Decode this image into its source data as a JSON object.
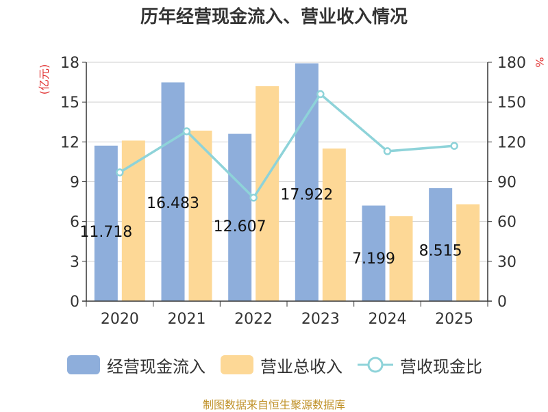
{
  "title": "历年经营现金流入、营业收入情况",
  "source": "制图数据来自恒生聚源数据库",
  "colors": {
    "cash_inflow": "#8eaedb",
    "revenue": "#fdd896",
    "ratio": "#8ed3d9",
    "axis_unit": "#e03030"
  },
  "chart_data": {
    "type": "bar",
    "categories": [
      "2020",
      "2021",
      "2022",
      "2023",
      "2024",
      "2025"
    ],
    "y_left": {
      "label": "(亿元)",
      "ylim": [
        0,
        18
      ],
      "ticks": [
        "0",
        "3",
        "6",
        "9",
        "12",
        "15",
        "18"
      ]
    },
    "y_right": {
      "label": "%",
      "ylim": [
        0,
        180
      ],
      "ticks": [
        "0",
        "30",
        "60",
        "90",
        "120",
        "150",
        "180"
      ]
    },
    "series": [
      {
        "name": "经营现金流入",
        "type": "bar",
        "axis": "left",
        "values": [
          11.718,
          16.483,
          12.607,
          17.922,
          7.199,
          8.515
        ],
        "labels": [
          "11.718",
          "16.483",
          "12.607",
          "17.922",
          "7.199",
          "8.515"
        ]
      },
      {
        "name": "营业总收入",
        "type": "bar",
        "axis": "left",
        "values": [
          12.1,
          12.85,
          16.2,
          11.5,
          6.4,
          7.3
        ]
      },
      {
        "name": "营收现金比",
        "type": "line",
        "axis": "right",
        "values": [
          97,
          128,
          78,
          156,
          113,
          117
        ]
      }
    ],
    "grid": true,
    "legend": "bottom"
  }
}
